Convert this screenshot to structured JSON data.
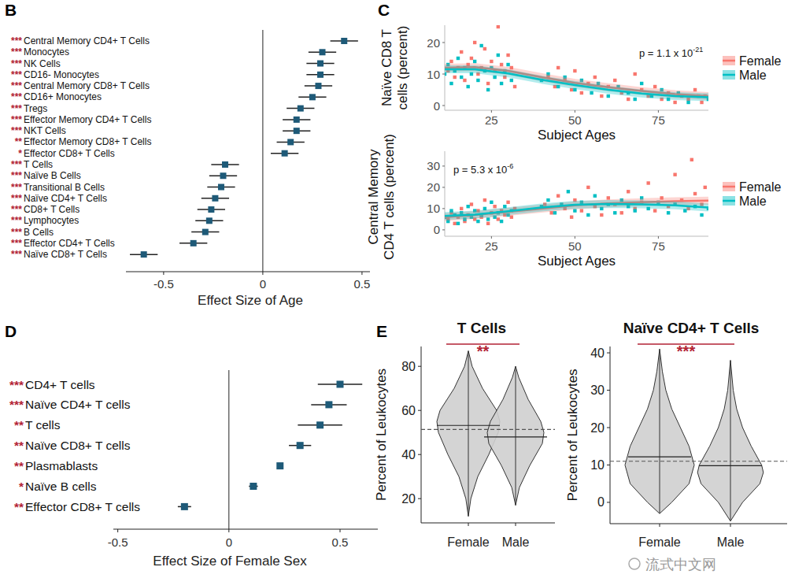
{
  "chart_data": [
    {
      "panel": "B",
      "type": "forest",
      "orientation": "horizontal",
      "marker": "square",
      "color": "#1e5a78",
      "categories": [
        "Central Memory CD4+ T Cells",
        "Monocytes",
        "NK Cells",
        "CD16- Monocytes",
        "Central Memory CD8+ T Cells",
        "CD16+ Monocytes",
        "Tregs",
        "Effector Memory CD4+ T Cells",
        "NKT Cells",
        "Effector Memory CD8+ T Cells",
        "Effector CD8+ T Cells",
        "T Cells",
        "Naïve B Cells",
        "Transitional B Cells",
        "Naïve CD4+ T Cells",
        "CD8+ T Cells",
        "Lymphocytes",
        "B Cells",
        "Effector CD4+ T Cells",
        "Naïve CD8+ T Cells"
      ],
      "values": [
        0.41,
        0.3,
        0.29,
        0.29,
        0.28,
        0.25,
        0.19,
        0.17,
        0.17,
        0.14,
        0.11,
        -0.19,
        -0.2,
        -0.21,
        -0.24,
        -0.26,
        -0.27,
        -0.29,
        -0.35,
        -0.6
      ],
      "errors": [
        0.07,
        0.07,
        0.07,
        0.07,
        0.07,
        0.07,
        0.07,
        0.07,
        0.07,
        0.07,
        0.07,
        0.07,
        0.07,
        0.07,
        0.07,
        0.07,
        0.07,
        0.07,
        0.07,
        0.07
      ],
      "significance": [
        "***",
        "***",
        "***",
        "***",
        "***",
        "***",
        "***",
        "***",
        "***",
        "**",
        "*",
        "***",
        "***",
        "***",
        "***",
        "***",
        "***",
        "***",
        "***",
        "***"
      ],
      "xlabel": "Effect Size of Age",
      "xlim": [
        -0.69,
        0.54
      ],
      "xticks": [
        -0.5,
        0,
        0.5
      ]
    },
    {
      "panel": "C",
      "type": "scatter",
      "marker": "square",
      "legend": "right",
      "xlabel": "Subject Ages",
      "ylabel": [
        "Naïve CD8 T",
        "cells (percent)"
      ],
      "xlim": [
        11,
        90
      ],
      "xticks": [
        25,
        50,
        75
      ],
      "ylim": [
        -1.5,
        25.5
      ],
      "yticks": [
        0,
        10,
        20
      ],
      "annotations": [
        {
          "text": "p = 1.1 x 10",
          "superscript": "-21"
        }
      ],
      "series": [
        {
          "name": "Female",
          "color": "#f8766d",
          "x": [
            12,
            13,
            14,
            15,
            16,
            17,
            18,
            19,
            20,
            21,
            22,
            23,
            24,
            25,
            26,
            27,
            28,
            29,
            30,
            31,
            32,
            42,
            44,
            45,
            47,
            49,
            50,
            52,
            54,
            56,
            58,
            60,
            62,
            64,
            66,
            68,
            70,
            72,
            74,
            76,
            78,
            80,
            82,
            84,
            86,
            88,
            89
          ],
          "values": [
            11,
            14,
            9,
            12,
            17,
            8,
            13,
            15,
            20,
            10,
            12,
            18,
            7,
            14,
            11,
            25,
            13,
            9,
            16,
            12,
            6,
            9,
            6,
            12,
            8,
            5,
            11,
            4,
            7,
            9,
            3,
            6,
            8,
            4,
            2,
            10,
            5,
            3,
            6,
            2,
            4,
            1,
            3,
            2,
            5,
            1,
            3
          ],
          "fit": {
            "x": [
              11,
              20,
              30,
              40,
              50,
              60,
              70,
              80,
              90
            ],
            "values": [
              12,
              12.2,
              11,
              9,
              7.2,
              5.8,
              4.6,
              3.6,
              3
            ]
          }
        },
        {
          "name": "Male",
          "color": "#00bfc4",
          "x": [
            11,
            12,
            13,
            14,
            15,
            16,
            17,
            18,
            19,
            20,
            21,
            22,
            23,
            24,
            25,
            26,
            27,
            28,
            29,
            30,
            31,
            40,
            42,
            45,
            47,
            50,
            52,
            55,
            57,
            60,
            63,
            66,
            68,
            70,
            73,
            76,
            78,
            81,
            84,
            87,
            90
          ],
          "values": [
            10,
            13,
            7,
            11,
            15,
            9,
            12,
            6,
            10,
            14,
            8,
            19,
            11,
            5,
            12,
            9,
            16,
            7,
            11,
            13,
            8,
            8,
            10,
            6,
            9,
            5,
            8,
            4,
            7,
            3,
            6,
            4,
            2,
            7,
            3,
            5,
            2,
            4,
            1,
            3,
            2
          ],
          "fit": {
            "x": [
              11,
              20,
              30,
              40,
              50,
              60,
              70,
              80,
              90
            ],
            "values": [
              11.5,
              11.5,
              10.2,
              8.2,
              6.5,
              5,
              3.8,
              3,
              2.6
            ]
          }
        }
      ]
    },
    {
      "type": "scatter",
      "marker": "square",
      "legend": "right",
      "xlabel": "Subject Ages",
      "ylabel": [
        "Central Memory",
        "CD4 T cells (percent)"
      ],
      "xlim": [
        11,
        90
      ],
      "xticks": [
        25,
        50,
        75
      ],
      "ylim": [
        -3,
        37
      ],
      "yticks": [
        0,
        10,
        20,
        30
      ],
      "annotations": [
        {
          "text": "p = 5.3 x 10",
          "superscript": "-6"
        }
      ],
      "series": [
        {
          "name": "Female",
          "color": "#f8766d",
          "x": [
            12,
            13,
            14,
            15,
            16,
            17,
            18,
            19,
            20,
            21,
            22,
            23,
            24,
            25,
            26,
            27,
            28,
            29,
            30,
            31,
            32,
            41,
            43,
            45,
            47,
            49,
            50,
            52,
            54,
            56,
            58,
            60,
            62,
            64,
            66,
            68,
            70,
            72,
            74,
            76,
            78,
            80,
            82,
            84,
            85,
            86,
            88,
            89
          ],
          "values": [
            5,
            8,
            3,
            6,
            10,
            4,
            7,
            12,
            5,
            9,
            6,
            14,
            3,
            8,
            11,
            5,
            9,
            7,
            13,
            6,
            10,
            12,
            8,
            16,
            10,
            6,
            14,
            9,
            20,
            11,
            7,
            15,
            12,
            8,
            18,
            10,
            13,
            22,
            9,
            15,
            11,
            26,
            14,
            10,
            33,
            17,
            12,
            20
          ],
          "fit": {
            "x": [
              11,
              20,
              30,
              40,
              50,
              60,
              70,
              80,
              90
            ],
            "values": [
              6,
              7,
              8.5,
              10,
              11.5,
              12.5,
              13,
              13.5,
              13.8
            ]
          }
        },
        {
          "name": "Male",
          "color": "#00bfc4",
          "x": [
            11,
            12,
            13,
            14,
            15,
            16,
            17,
            18,
            19,
            20,
            21,
            22,
            23,
            24,
            25,
            26,
            27,
            28,
            29,
            30,
            31,
            40,
            42,
            44,
            46,
            48,
            50,
            52,
            54,
            56,
            58,
            60,
            62,
            64,
            66,
            68,
            70,
            72,
            75,
            78,
            80,
            83,
            86,
            88,
            90
          ],
          "values": [
            6,
            4,
            9,
            7,
            3,
            8,
            5,
            11,
            6,
            9,
            4,
            7,
            10,
            5,
            13,
            6,
            8,
            4,
            11,
            7,
            9,
            11,
            14,
            8,
            12,
            18,
            9,
            13,
            7,
            16,
            10,
            12,
            8,
            14,
            11,
            9,
            15,
            10,
            13,
            8,
            12,
            9,
            11,
            7,
            10
          ],
          "fit": {
            "x": [
              11,
              20,
              30,
              40,
              50,
              60,
              70,
              80,
              90
            ],
            "values": [
              6.5,
              7.2,
              8.8,
              10.5,
              11.8,
              12.2,
              12,
              11.5,
              10.5
            ]
          }
        }
      ]
    },
    {
      "panel": "D",
      "type": "forest",
      "orientation": "horizontal",
      "marker": "square",
      "color": "#1e5a78",
      "categories": [
        "CD4+ T cells",
        "Naïve CD4+ T cells",
        "T cells",
        "Naïve CD8+ T cells",
        "Plasmablasts",
        "Naïve B cells",
        "Effector CD8+ T cells"
      ],
      "values": [
        0.5,
        0.45,
        0.41,
        0.32,
        0.23,
        0.11,
        -0.2
      ],
      "errors": [
        0.1,
        0.08,
        0.1,
        0.05,
        0.01,
        0.02,
        0.03
      ],
      "significance": [
        "***",
        "***",
        "**",
        "**",
        "**",
        "*",
        "**"
      ],
      "xlabel": "Effect Size of Female Sex",
      "xlim": [
        -0.52,
        0.67
      ],
      "xticks": [
        -0.5,
        0,
        0.5
      ]
    },
    {
      "panel": "E",
      "type": "violin",
      "title": "T Cells",
      "ylabel": "Percent of Leukocytes",
      "categories": [
        "Female",
        "Male"
      ],
      "ylim": [
        9,
        89
      ],
      "yticks": [
        20,
        40,
        60,
        80
      ],
      "violins": [
        {
          "y": [
            12,
            20,
            30,
            40,
            50,
            55,
            60,
            70,
            80,
            87
          ],
          "density": [
            0,
            0.08,
            0.3,
            0.65,
            0.95,
            1.0,
            0.9,
            0.45,
            0.12,
            0
          ]
        },
        {
          "y": [
            17,
            25,
            35,
            45,
            50,
            55,
            65,
            75,
            80
          ],
          "density": [
            0,
            0.12,
            0.45,
            0.85,
            0.9,
            0.8,
            0.4,
            0.1,
            0
          ]
        }
      ],
      "means": [
        53.2,
        48
      ],
      "overall_mean": 51.4,
      "significance": "**"
    },
    {
      "type": "violin",
      "title": "Naïve CD4+ T Cells",
      "ylabel": "Percent of Leukocytes",
      "categories": [
        "Female",
        "Male"
      ],
      "ylim": [
        -5.7,
        41.7
      ],
      "yticks": [
        0,
        10,
        20,
        30,
        40
      ],
      "violins": [
        {
          "y": [
            -3,
            0,
            5,
            10,
            15,
            20,
            25,
            30,
            35,
            41
          ],
          "density": [
            0,
            0.35,
            0.85,
            1.0,
            0.85,
            0.6,
            0.35,
            0.18,
            0.08,
            0
          ]
        },
        {
          "y": [
            -5,
            0,
            5,
            8,
            10,
            15,
            20,
            25,
            30,
            38
          ],
          "density": [
            0,
            0.35,
            0.85,
            0.95,
            0.9,
            0.6,
            0.35,
            0.18,
            0.08,
            0
          ]
        }
      ],
      "means": [
        12.2,
        9.8
      ],
      "overall_mean": 11,
      "significance": "***"
    }
  ],
  "watermark": "流式中文网"
}
